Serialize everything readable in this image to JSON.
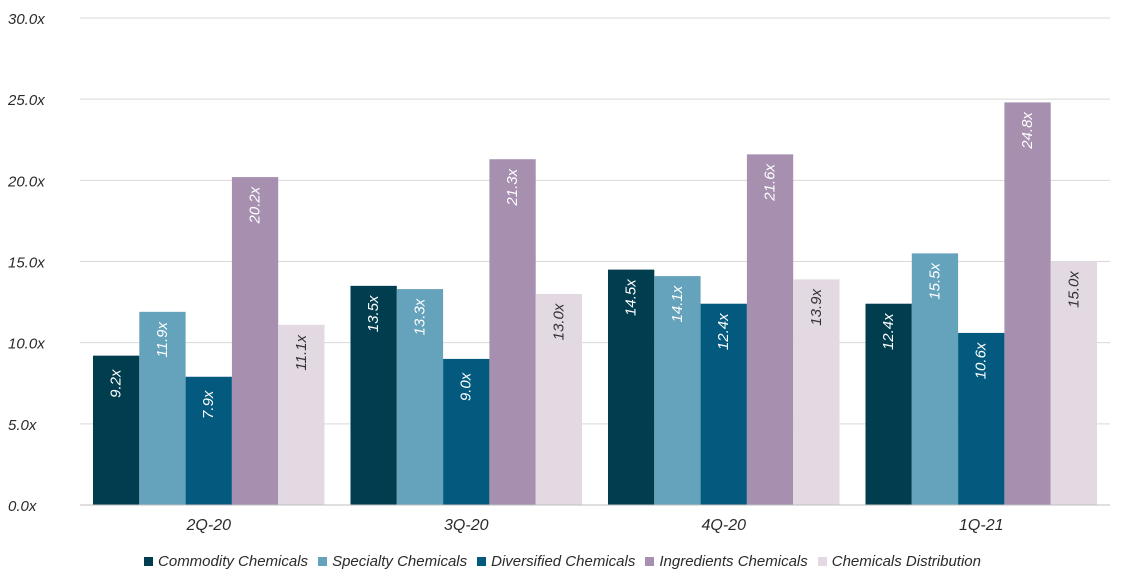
{
  "chart_data": {
    "type": "bar",
    "categories": [
      "2Q-20",
      "3Q-20",
      "4Q-20",
      "1Q-21"
    ],
    "series": [
      {
        "name": "Commodity Chemicals",
        "color": "#003d4f",
        "values": [
          9.2,
          13.5,
          14.5,
          12.4
        ],
        "labels": [
          "9.2x",
          "13.5x",
          "14.5x",
          "12.4x"
        ]
      },
      {
        "name": "Specialty Chemicals",
        "color": "#65a2bb",
        "values": [
          11.9,
          13.3,
          14.1,
          15.5
        ],
        "labels": [
          "11.9x",
          "13.3x",
          "14.1x",
          "15.5x"
        ]
      },
      {
        "name": "Diversified Chemicals",
        "color": "#045a7e",
        "values": [
          7.9,
          9.0,
          12.4,
          10.6
        ],
        "labels": [
          "7.9x",
          "9.0x",
          "12.4x",
          "10.6x"
        ]
      },
      {
        "name": "Ingredients Chemicals",
        "color": "#a68faf",
        "values": [
          20.2,
          21.3,
          21.6,
          24.8
        ],
        "labels": [
          "20.2x",
          "21.3x",
          "21.6x",
          "24.8x"
        ]
      },
      {
        "name": "Chemicals Distribution",
        "color": "#e3d9e3",
        "values": [
          11.1,
          13.0,
          13.9,
          15.0
        ],
        "labels": [
          "11.1x",
          "13.0x",
          "13.9x",
          "15.0x"
        ]
      }
    ],
    "yticks": [
      "0.0x",
      "5.0x",
      "10.0x",
      "15.0x",
      "20.0x",
      "25.0x",
      "30.0x"
    ],
    "ylim": [
      0,
      30
    ],
    "grid": true,
    "legend_position": "bottom"
  }
}
